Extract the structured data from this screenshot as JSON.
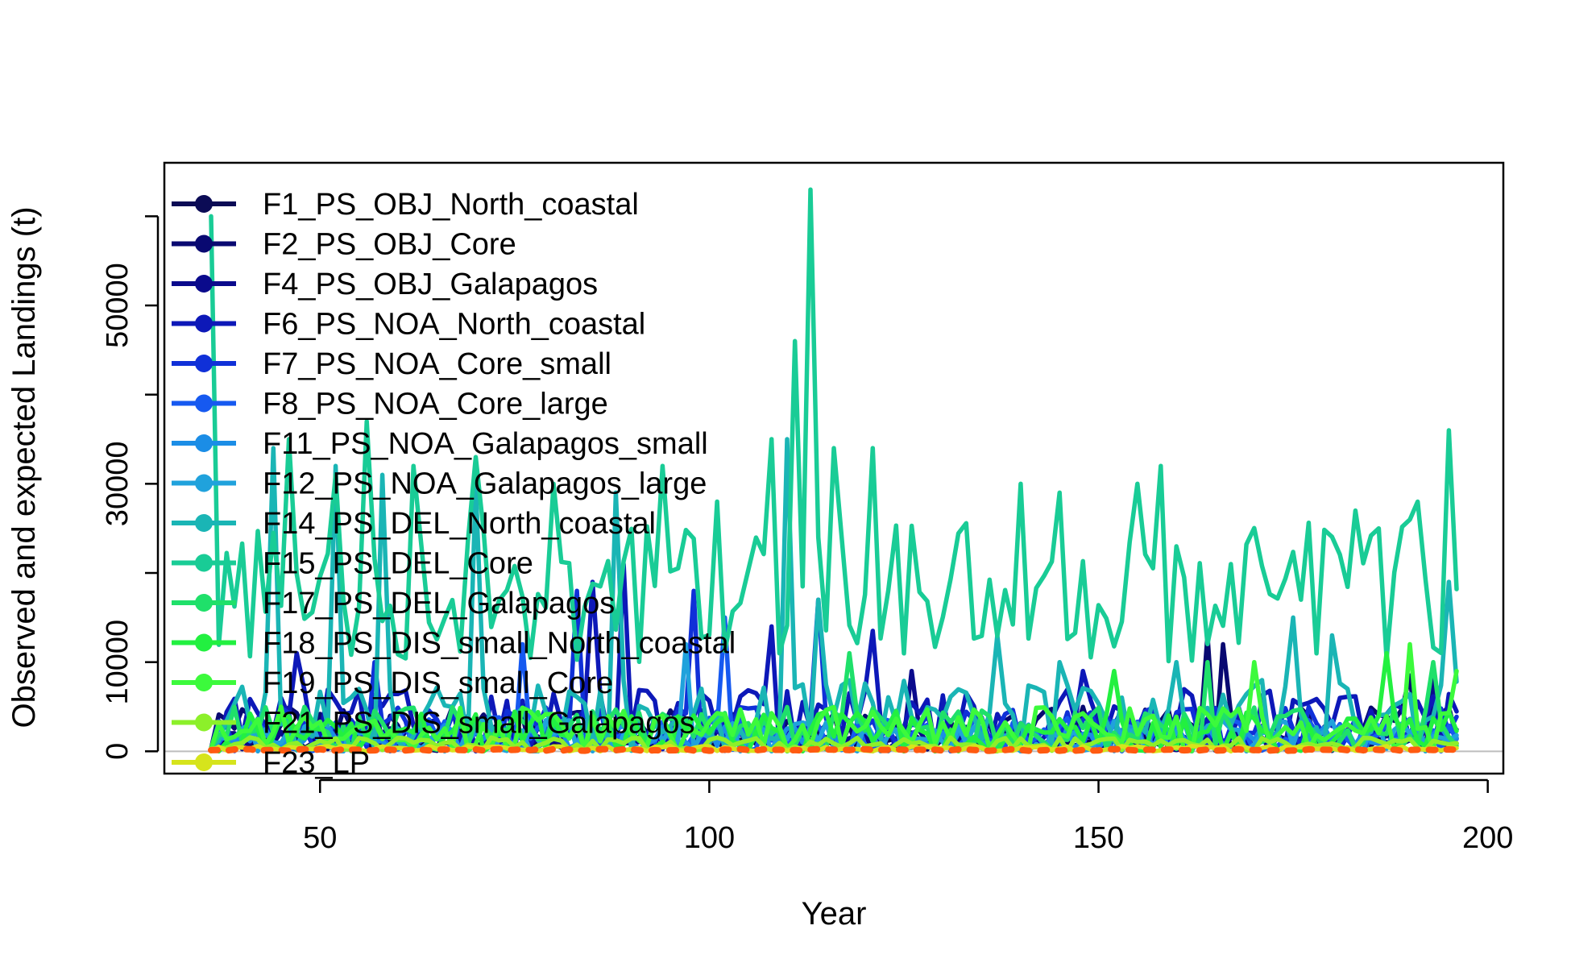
{
  "chart_data": {
    "type": "line",
    "xlabel": "Year",
    "ylabel": "Observed and expected Landings (t)",
    "xlim": [
      30,
      202
    ],
    "ylim": [
      -2500,
      66000
    ],
    "x_ticks": [
      50,
      100,
      150,
      200
    ],
    "x_tick_labels": [
      "50",
      "100",
      "150",
      "200"
    ],
    "y_ticks": [
      0,
      10000,
      30000,
      50000
    ],
    "y_tick_labels": [
      "0",
      "10000",
      "30000",
      "50000"
    ],
    "y_minor_ticks": [
      0,
      10000,
      20000,
      30000,
      40000,
      50000,
      60000
    ],
    "legend_position": "top-left",
    "reference_line_y": 0,
    "x_start": 36,
    "x_end": 196,
    "series": [
      {
        "name": "F1_PS_OBJ_North_coastal",
        "color": "#0b0b55",
        "base": 1000,
        "amp": 700,
        "spikes": []
      },
      {
        "name": "F2_PS_OBJ_Core",
        "color": "#090971",
        "base": 2500,
        "amp": 2500,
        "spikes": [
          [
            164,
            13000
          ],
          [
            166,
            12000
          ],
          [
            190,
            8500
          ]
        ]
      },
      {
        "name": "F4_PS_OBJ_Galapagos",
        "color": "#0a0a8c",
        "base": 1500,
        "amp": 1500,
        "spikes": [
          [
            126,
            9000
          ],
          [
            193,
            8000
          ]
        ]
      },
      {
        "name": "F6_PS_NOA_North_coastal",
        "color": "#0d18b8",
        "base": 3500,
        "amp": 3500,
        "spikes": [
          [
            47,
            11000
          ],
          [
            85,
            19000
          ],
          [
            89,
            21000
          ],
          [
            108,
            14000
          ],
          [
            121,
            13500
          ],
          [
            148,
            9000
          ]
        ]
      },
      {
        "name": "F7_PS_NOA_Core_small",
        "color": "#1030d8",
        "base": 2500,
        "amp": 2500,
        "spikes": [
          [
            83,
            18000
          ],
          [
            98,
            18000
          ],
          [
            114,
            17000
          ],
          [
            57,
            10000
          ]
        ]
      },
      {
        "name": "F8_PS_NOA_Core_large",
        "color": "#1659f0",
        "base": 1800,
        "amp": 2000,
        "spikes": [
          [
            102,
            15000
          ],
          [
            76,
            12000
          ]
        ]
      },
      {
        "name": "F11_PS_NOA_Galapagos_small",
        "color": "#1b8de6",
        "base": 1500,
        "amp": 1500,
        "spikes": []
      },
      {
        "name": "F12_PS_NOA_Galapagos_large",
        "color": "#20a2dc",
        "base": 1500,
        "amp": 2000,
        "spikes": [
          [
            97,
            12000
          ]
        ]
      },
      {
        "name": "F14_PS_DEL_North_coastal",
        "color": "#1ab5b5",
        "base": 4000,
        "amp": 4000,
        "spikes": [
          [
            44,
            34000
          ],
          [
            52,
            32000
          ],
          [
            58,
            31000
          ],
          [
            70,
            30000
          ],
          [
            88,
            29000
          ],
          [
            110,
            35000
          ],
          [
            114,
            17000
          ],
          [
            137,
            13000
          ],
          [
            145,
            10000
          ],
          [
            160,
            10000
          ],
          [
            175,
            15000
          ],
          [
            180,
            13000
          ],
          [
            195,
            19000
          ]
        ]
      },
      {
        "name": "F15_PS_DEL_Core",
        "color": "#19cc96",
        "base": 18000,
        "amp": 8000,
        "spikes": [
          [
            36,
            60000
          ],
          [
            46,
            35000
          ],
          [
            52,
            31000
          ],
          [
            56,
            37000
          ],
          [
            62,
            32000
          ],
          [
            70,
            33000
          ],
          [
            80,
            30000
          ],
          [
            94,
            32000
          ],
          [
            101,
            28000
          ],
          [
            108,
            35000
          ],
          [
            111,
            46000
          ],
          [
            113,
            63000
          ],
          [
            116,
            34000
          ],
          [
            121,
            34000
          ],
          [
            140,
            30000
          ],
          [
            145,
            29000
          ],
          [
            155,
            30000
          ],
          [
            158,
            32000
          ],
          [
            167,
            21000
          ],
          [
            176,
            17000
          ],
          [
            183,
            27000
          ],
          [
            186,
            25000
          ],
          [
            191,
            28000
          ],
          [
            195,
            36000
          ]
        ]
      },
      {
        "name": "F17_PS_DEL_Galapagos",
        "color": "#1fe06a",
        "base": 2500,
        "amp": 2500,
        "spikes": [
          [
            118,
            11000
          ],
          [
            164,
            10000
          ],
          [
            193,
            10000
          ]
        ]
      },
      {
        "name": "F18_PS_DIS_small_North_coastal",
        "color": "#22f040",
        "base": 2000,
        "amp": 2500,
        "spikes": [
          [
            152,
            9000
          ],
          [
            187,
            11000
          ]
        ]
      },
      {
        "name": "F19_PS_DIS_small_Core",
        "color": "#3cfa3c",
        "base": 2500,
        "amp": 2500,
        "spikes": [
          [
            170,
            10000
          ],
          [
            190,
            12000
          ],
          [
            196,
            9000
          ]
        ]
      },
      {
        "name": "F21_PS_DIS_small_Galapagos",
        "color": "#8cf02a",
        "base": 800,
        "amp": 800,
        "spikes": []
      },
      {
        "name": "F23_LP",
        "color": "#d6e41c",
        "base": 300,
        "amp": 300,
        "spikes": []
      },
      {
        "name": "",
        "color": "#ff5a10",
        "base": 150,
        "amp": 100,
        "spikes": [],
        "dotted": true
      }
    ]
  }
}
